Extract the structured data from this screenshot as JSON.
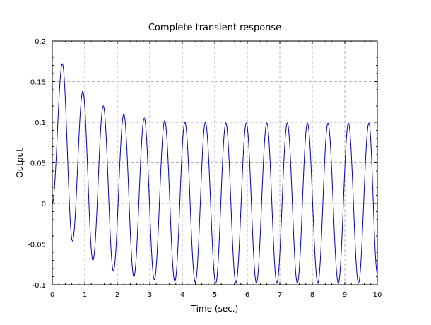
{
  "chart_data": {
    "type": "line",
    "title": "Complete transient response",
    "xlabel": "Time (sec.)",
    "ylabel": "Output",
    "xlim": [
      0,
      10
    ],
    "ylim": [
      -0.1,
      0.2
    ],
    "xticks": [
      "0",
      "1",
      "2",
      "3",
      "4",
      "5",
      "6",
      "7",
      "8",
      "9",
      "10"
    ],
    "yticks": [
      "-0.1",
      "-0.05",
      "0",
      "0.05",
      "0.1",
      "0.15",
      "0.2"
    ],
    "grid": true,
    "series_color": "#0000cc",
    "series": [
      {
        "x": [
          0,
          0.31,
          0.62,
          0.94,
          1.25,
          1.57,
          1.88,
          2.2,
          2.51,
          2.83,
          3.14,
          3.46,
          3.77,
          4.08,
          4.4,
          4.71,
          5.03,
          5.34,
          5.65,
          5.97,
          6.28,
          6.6,
          6.91,
          7.23,
          7.54,
          7.85,
          8.17,
          8.48,
          8.8,
          9.11,
          9.42,
          9.74,
          10
        ],
        "y": [
          0,
          0.172,
          -0.046,
          0.138,
          -0.07,
          0.12,
          -0.083,
          0.11,
          -0.09,
          0.105,
          -0.094,
          0.102,
          -0.096,
          0.1,
          -0.097,
          0.1,
          -0.098,
          0.099,
          -0.098,
          0.099,
          -0.098,
          0.099,
          -0.098,
          0.099,
          -0.098,
          0.099,
          -0.098,
          0.099,
          -0.098,
          0.099,
          -0.098,
          0.099,
          -0.086
        ]
      }
    ]
  }
}
